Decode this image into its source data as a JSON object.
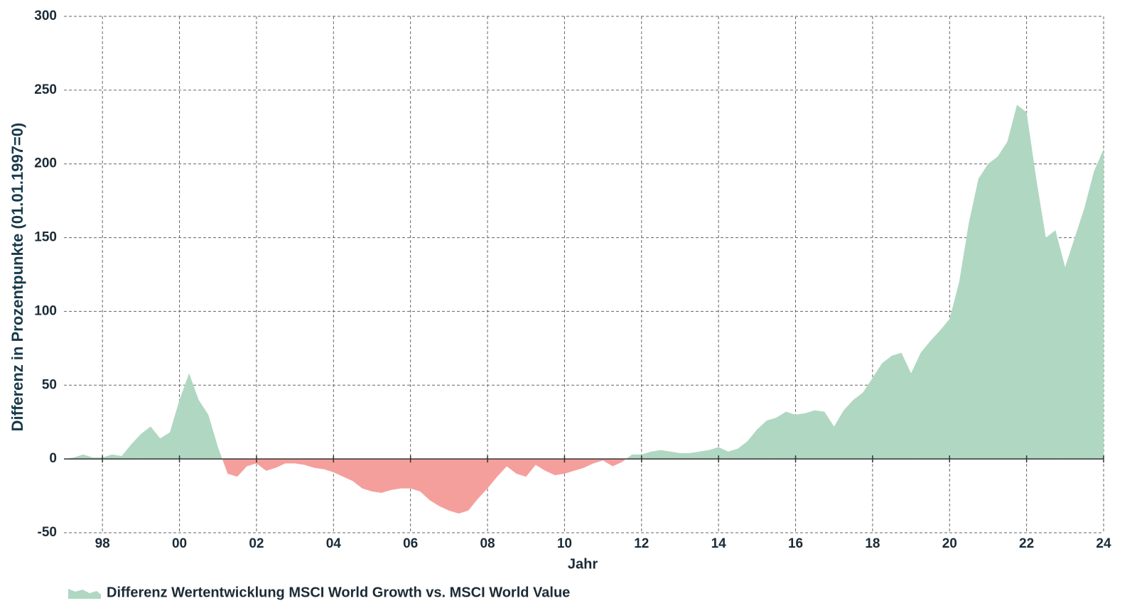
{
  "chart_data": {
    "type": "area",
    "xlabel": "Jahr",
    "ylabel": "Differenz in Prozentpunkte (01.01.1997=0)",
    "x": [
      1997.0,
      1997.25,
      1997.5,
      1997.75,
      1998.0,
      1998.25,
      1998.5,
      1998.75,
      1999.0,
      1999.25,
      1999.5,
      1999.75,
      2000.0,
      2000.25,
      2000.5,
      2000.75,
      2001.0,
      2001.25,
      2001.5,
      2001.75,
      2002.0,
      2002.25,
      2002.5,
      2002.75,
      2003.0,
      2003.25,
      2003.5,
      2003.75,
      2004.0,
      2004.25,
      2004.5,
      2004.75,
      2005.0,
      2005.25,
      2005.5,
      2005.75,
      2006.0,
      2006.25,
      2006.5,
      2006.75,
      2007.0,
      2007.25,
      2007.5,
      2007.75,
      2008.0,
      2008.25,
      2008.5,
      2008.75,
      2009.0,
      2009.25,
      2009.5,
      2009.75,
      2010.0,
      2010.25,
      2010.5,
      2010.75,
      2011.0,
      2011.25,
      2011.5,
      2011.75,
      2012.0,
      2012.25,
      2012.5,
      2012.75,
      2013.0,
      2013.25,
      2013.5,
      2013.75,
      2014.0,
      2014.25,
      2014.5,
      2014.75,
      2015.0,
      2015.25,
      2015.5,
      2015.75,
      2016.0,
      2016.25,
      2016.5,
      2016.75,
      2017.0,
      2017.25,
      2017.5,
      2017.75,
      2018.0,
      2018.25,
      2018.5,
      2018.75,
      2019.0,
      2019.25,
      2019.5,
      2019.75,
      2020.0,
      2020.25,
      2020.5,
      2020.75,
      2021.0,
      2021.25,
      2021.5,
      2021.75,
      2022.0,
      2022.25,
      2022.5,
      2022.75,
      2023.0,
      2023.25,
      2023.5,
      2023.75,
      2024.0
    ],
    "series": [
      {
        "name": "Differenz Wertentwicklung MSCI World Growth vs. MSCI World Value",
        "color": "#b0d7c2",
        "negative_color": "#f59f9d",
        "values": [
          0,
          1,
          3,
          1,
          1,
          3,
          2,
          10,
          17,
          22,
          14,
          18,
          40,
          58,
          40,
          30,
          8,
          -10,
          -12,
          -5,
          -3,
          -8,
          -6,
          -3,
          -3,
          -4,
          -6,
          -7,
          -9,
          -12,
          -15,
          -20,
          -22,
          -23,
          -21,
          -20,
          -20,
          -22,
          -28,
          -32,
          -35,
          -37,
          -35,
          -27,
          -20,
          -12,
          -5,
          -10,
          -12,
          -4,
          -8,
          -11,
          -10,
          -8,
          -6,
          -3,
          -1,
          -5,
          -2,
          3,
          3,
          5,
          6,
          5,
          4,
          4,
          5,
          6,
          8,
          5,
          7,
          12,
          20,
          26,
          28,
          32,
          30,
          31,
          33,
          32,
          22,
          33,
          40,
          45,
          55,
          65,
          70,
          72,
          58,
          72,
          80,
          87,
          95,
          120,
          160,
          190,
          200,
          205,
          215,
          240,
          235,
          190,
          150,
          155,
          130,
          150,
          170,
          195,
          210
        ]
      }
    ],
    "xlim": [
      1997,
      2024
    ],
    "xticks": [
      {
        "value": 1998,
        "label": "98"
      },
      {
        "value": 2000,
        "label": "00"
      },
      {
        "value": 2002,
        "label": "02"
      },
      {
        "value": 2004,
        "label": "04"
      },
      {
        "value": 2006,
        "label": "06"
      },
      {
        "value": 2008,
        "label": "08"
      },
      {
        "value": 2010,
        "label": "10"
      },
      {
        "value": 2012,
        "label": "12"
      },
      {
        "value": 2014,
        "label": "14"
      },
      {
        "value": 2016,
        "label": "16"
      },
      {
        "value": 2018,
        "label": "18"
      },
      {
        "value": 2020,
        "label": "20"
      },
      {
        "value": 2022,
        "label": "22"
      },
      {
        "value": 2024,
        "label": "24"
      }
    ],
    "ylim": [
      -50,
      300
    ],
    "yticks": [
      -50,
      0,
      50,
      100,
      150,
      200,
      250,
      300
    ],
    "grid": true,
    "legend": "bottom-left"
  }
}
